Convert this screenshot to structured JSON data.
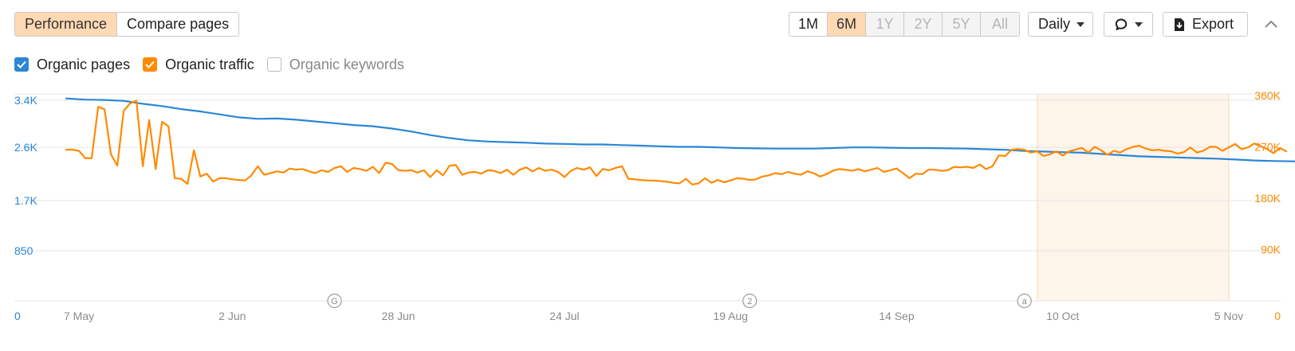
{
  "toolbar": {
    "tabs": [
      {
        "label": "Performance",
        "active": true
      },
      {
        "label": "Compare pages",
        "active": false
      }
    ],
    "periods": [
      {
        "label": "1M",
        "state": "normal"
      },
      {
        "label": "6M",
        "state": "active"
      },
      {
        "label": "1Y",
        "state": "disabled"
      },
      {
        "label": "2Y",
        "state": "disabled"
      },
      {
        "label": "5Y",
        "state": "disabled"
      },
      {
        "label": "All",
        "state": "disabled"
      }
    ],
    "granularity": "Daily",
    "export_label": "Export"
  },
  "legend": [
    {
      "label": "Organic pages",
      "checked": true,
      "color": "#2b86d6"
    },
    {
      "label": "Organic traffic",
      "checked": true,
      "color": "#ff8a00"
    },
    {
      "label": "Organic keywords",
      "checked": false,
      "color": "#bdbdbd"
    }
  ],
  "chart_data": {
    "type": "line",
    "x_ticks": [
      "7 May",
      "2 Jun",
      "28 Jun",
      "24 Jul",
      "19 Aug",
      "14 Sep",
      "10 Oct",
      "5 Nov"
    ],
    "x_range": [
      "2023-05-07",
      "2023-11-05"
    ],
    "y_left": {
      "ticks": [
        "0",
        "850",
        "1.7K",
        "2.6K",
        "3.4K"
      ],
      "values": [
        0,
        850,
        1700,
        2600,
        3400
      ],
      "max": 3480
    },
    "y_right": {
      "ticks": [
        "0",
        "90K",
        "180K",
        "270K",
        "360K"
      ],
      "values": [
        0,
        90000,
        180000,
        270000,
        360000
      ],
      "max": 360000
    },
    "grid": true,
    "highlight_range": [
      "2023-10-06",
      "2023-11-05"
    ],
    "annotations": [
      {
        "date": "2023-06-18",
        "label": "G"
      },
      {
        "date": "2023-08-22",
        "label": "2"
      },
      {
        "date": "2023-10-04",
        "label": "a"
      }
    ],
    "series": [
      {
        "name": "Organic pages",
        "axis": "left",
        "color": "#2b86d6",
        "start_date": "2023-05-07",
        "step_days": 3,
        "values": [
          3430,
          3410,
          3405,
          3390,
          3340,
          3300,
          3250,
          3210,
          3160,
          3110,
          3085,
          3090,
          3070,
          3040,
          3010,
          2980,
          2960,
          2920,
          2870,
          2810,
          2760,
          2720,
          2700,
          2690,
          2680,
          2665,
          2660,
          2650,
          2650,
          2640,
          2630,
          2620,
          2610,
          2610,
          2600,
          2590,
          2585,
          2580,
          2580,
          2580,
          2590,
          2600,
          2600,
          2595,
          2590,
          2590,
          2585,
          2580,
          2570,
          2560,
          2540,
          2530,
          2520,
          2510,
          2490,
          2470,
          2450,
          2440,
          2430,
          2420,
          2410,
          2395,
          2380,
          2370,
          2365,
          2360,
          2360,
          2360,
          2355,
          2350
        ]
      },
      {
        "name": "Organic traffic",
        "axis": "right",
        "color": "#ff8a00",
        "start_date": "2023-05-07",
        "step_days": 1,
        "values": [
          265000,
          265000,
          263000,
          250000,
          250000,
          340000,
          336000,
          257000,
          237000,
          333000,
          346000,
          351000,
          236000,
          317000,
          231000,
          314000,
          306000,
          215000,
          214000,
          205000,
          264000,
          218000,
          223000,
          209000,
          215000,
          215000,
          213000,
          212000,
          211000,
          220000,
          236000,
          221000,
          224000,
          227000,
          225000,
          232000,
          230000,
          231000,
          227000,
          224000,
          229000,
          226000,
          233000,
          236000,
          226000,
          233000,
          231000,
          228000,
          235000,
          224000,
          242000,
          240000,
          229000,
          228000,
          229000,
          225000,
          229000,
          217000,
          229000,
          220000,
          237000,
          238000,
          221000,
          225000,
          226000,
          223000,
          229000,
          228000,
          224000,
          230000,
          221000,
          230000,
          234000,
          227000,
          233000,
          228000,
          230000,
          226000,
          217000,
          228000,
          233000,
          230000,
          234000,
          219000,
          231000,
          229000,
          233000,
          236000,
          214000,
          213000,
          212000,
          211000,
          211000,
          210000,
          209000,
          207000,
          206000,
          214000,
          204000,
          206000,
          215000,
          207000,
          212000,
          208000,
          211000,
          215000,
          214000,
          212000,
          213000,
          218000,
          220000,
          224000,
          222000,
          226000,
          223000,
          221000,
          227000,
          224000,
          218000,
          222000,
          228000,
          231000,
          230000,
          228000,
          231000,
          227000,
          230000,
          233000,
          226000,
          229000,
          232000,
          224000,
          215000,
          223000,
          222000,
          230000,
          230000,
          228000,
          229000,
          235000,
          234000,
          235000,
          233000,
          239000,
          231000,
          236000,
          255000,
          254000,
          265000,
          266000,
          265000,
          260000,
          262000,
          254000,
          257000,
          262000,
          255000,
          262000,
          265000,
          268000,
          260000,
          270000,
          264000,
          256000,
          263000,
          260000,
          266000,
          270000,
          272000,
          267000,
          264000,
          265000,
          263000,
          262000,
          258000,
          261000,
          269000,
          260000,
          263000,
          270000,
          270000,
          263000,
          269000,
          275000,
          266000,
          269000,
          276000,
          271000,
          266000,
          259000,
          268000,
          262000
        ]
      }
    ]
  }
}
